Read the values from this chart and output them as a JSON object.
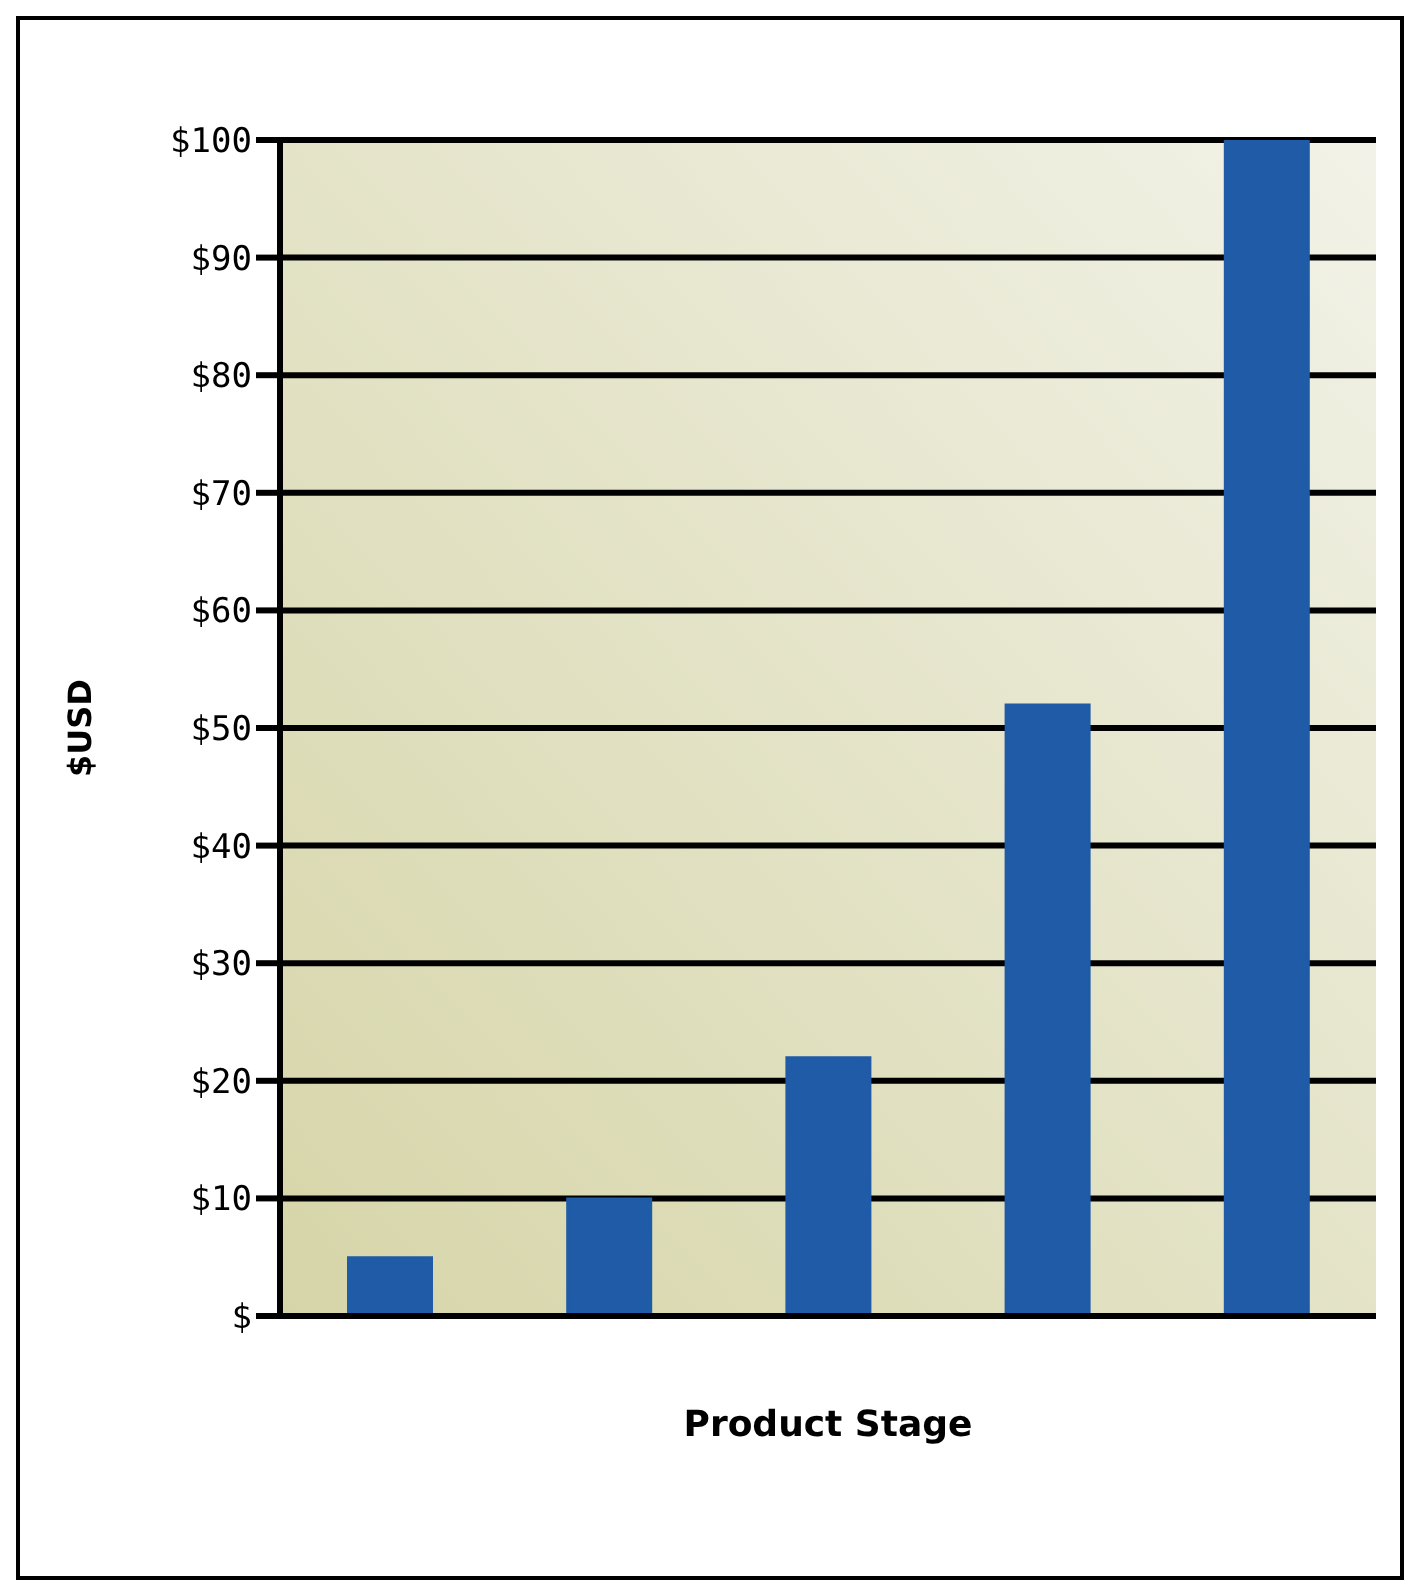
{
  "chart_data": {
    "type": "bar",
    "xlabel": "Product Stage",
    "ylabel": "$USD",
    "categories": [
      null,
      null,
      null,
      null,
      null
    ],
    "values": [
      5,
      10,
      22,
      52,
      100
    ],
    "color": "#1f5ba6",
    "ylim": [
      0,
      100
    ],
    "yticks": [
      {
        "value": 0,
        "label": "$"
      },
      {
        "value": 10,
        "label": "$10"
      },
      {
        "value": 20,
        "label": "$20"
      },
      {
        "value": 30,
        "label": "$30"
      },
      {
        "value": 40,
        "label": "$40"
      },
      {
        "value": 50,
        "label": "$50"
      },
      {
        "value": 60,
        "label": "$60"
      },
      {
        "value": 70,
        "label": "$70"
      },
      {
        "value": 80,
        "label": "$80"
      },
      {
        "value": 90,
        "label": "$90"
      },
      {
        "value": 100,
        "label": "$100"
      }
    ],
    "grid": "y"
  }
}
